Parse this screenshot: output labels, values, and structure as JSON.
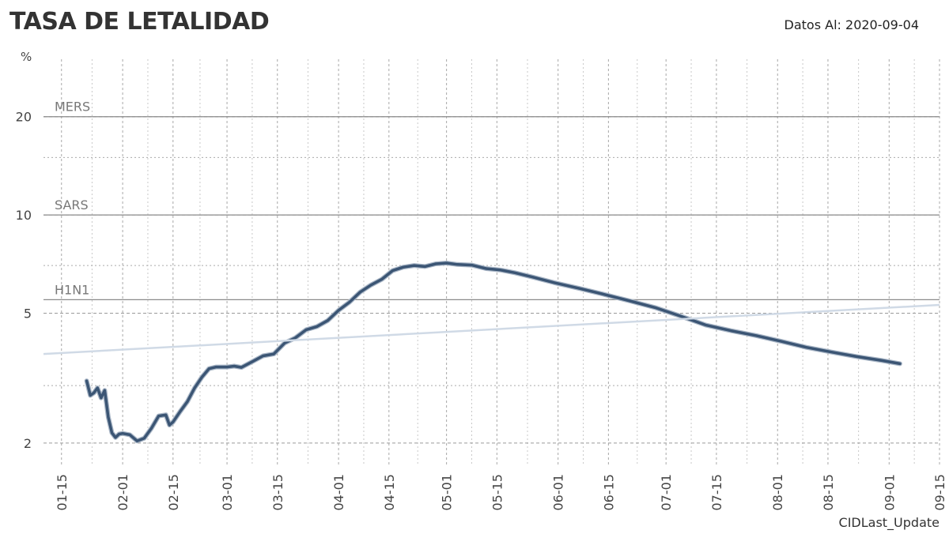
{
  "header": {
    "title": "TASA DE LETALIDAD",
    "as_of_label": "Datos Al: 2020-09-04"
  },
  "chart_data": {
    "type": "line",
    "title": "TASA DE LETALIDAD",
    "ylabel": "%",
    "xlabel": "CIDLast_Update",
    "y_scale": "log",
    "ylim": [
      1.7,
      30
    ],
    "xlim": [
      "2020-01-10",
      "2020-09-15"
    ],
    "y_ticks": [
      2,
      5,
      10,
      20
    ],
    "y_minor_ticks": [
      3,
      7,
      15
    ],
    "x_tick_labels": [
      "01-15",
      "02-01",
      "02-15",
      "03-01",
      "03-15",
      "04-01",
      "04-15",
      "05-01",
      "05-15",
      "06-01",
      "06-15",
      "07-01",
      "07-15",
      "08-01",
      "08-15",
      "09-01",
      "09-15"
    ],
    "x_tick_dates": [
      "2020-01-15",
      "2020-02-01",
      "2020-02-15",
      "2020-03-01",
      "2020-03-15",
      "2020-04-01",
      "2020-04-15",
      "2020-05-01",
      "2020-05-15",
      "2020-06-01",
      "2020-06-15",
      "2020-07-01",
      "2020-07-15",
      "2020-08-01",
      "2020-08-15",
      "2020-09-01",
      "2020-09-15"
    ],
    "grid": true,
    "reference_lines": [
      {
        "name": "MERS",
        "value": 20
      },
      {
        "name": "SARS",
        "value": 10
      },
      {
        "name": "H1N1",
        "value": 5.5
      }
    ],
    "series": [
      {
        "color": "#3b5574",
        "x": [
          "2020-01-22",
          "2020-01-23",
          "2020-01-24",
          "2020-01-25",
          "2020-01-26",
          "2020-01-27",
          "2020-01-28",
          "2020-01-29",
          "2020-01-30",
          "2020-01-31",
          "2020-02-01",
          "2020-02-03",
          "2020-02-05",
          "2020-02-07",
          "2020-02-09",
          "2020-02-11",
          "2020-02-13",
          "2020-02-14",
          "2020-02-15",
          "2020-02-17",
          "2020-02-19",
          "2020-02-21",
          "2020-02-23",
          "2020-02-25",
          "2020-02-27",
          "2020-03-01",
          "2020-03-03",
          "2020-03-05",
          "2020-03-08",
          "2020-03-11",
          "2020-03-14",
          "2020-03-17",
          "2020-03-20",
          "2020-03-23",
          "2020-03-26",
          "2020-03-29",
          "2020-04-01",
          "2020-04-04",
          "2020-04-07",
          "2020-04-10",
          "2020-04-13",
          "2020-04-16",
          "2020-04-19",
          "2020-04-22",
          "2020-04-25",
          "2020-04-28",
          "2020-05-01",
          "2020-05-04",
          "2020-05-08",
          "2020-05-12",
          "2020-05-16",
          "2020-05-20",
          "2020-05-25",
          "2020-05-31",
          "2020-06-07",
          "2020-06-14",
          "2020-06-21",
          "2020-06-28",
          "2020-07-05",
          "2020-07-12",
          "2020-07-19",
          "2020-07-26",
          "2020-08-02",
          "2020-08-09",
          "2020-08-16",
          "2020-08-23",
          "2020-08-30",
          "2020-09-04"
        ],
        "values": [
          3.1,
          2.8,
          2.85,
          2.95,
          2.75,
          2.9,
          2.4,
          2.15,
          2.08,
          2.13,
          2.14,
          2.12,
          2.03,
          2.07,
          2.22,
          2.42,
          2.44,
          2.27,
          2.32,
          2.5,
          2.68,
          2.95,
          3.18,
          3.38,
          3.42,
          3.42,
          3.44,
          3.41,
          3.55,
          3.7,
          3.75,
          4.05,
          4.2,
          4.45,
          4.55,
          4.75,
          5.1,
          5.4,
          5.8,
          6.1,
          6.35,
          6.75,
          6.92,
          7.0,
          6.95,
          7.08,
          7.12,
          7.05,
          7.02,
          6.85,
          6.78,
          6.65,
          6.45,
          6.2,
          5.95,
          5.7,
          5.45,
          5.2,
          4.9,
          4.6,
          4.42,
          4.27,
          4.1,
          3.93,
          3.8,
          3.68,
          3.58,
          3.5
        ]
      },
      {
        "color": "#d0dae6",
        "x": [
          "2020-01-10",
          "2020-09-15"
        ],
        "values": [
          3.75,
          5.3
        ]
      }
    ]
  },
  "caption": "CIDLast_Update"
}
